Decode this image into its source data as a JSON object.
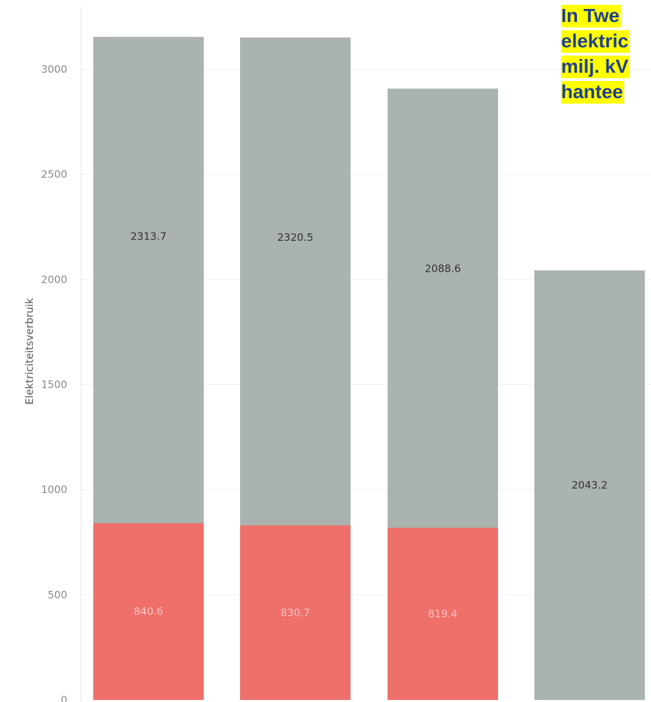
{
  "chart_data": {
    "type": "bar",
    "stacked": true,
    "ylabel": "Elektriciteitsverbruik",
    "xlabel": "",
    "ylim": [
      0,
      3200
    ],
    "yticks": [
      0,
      500,
      1000,
      1500,
      2000,
      2500,
      3000
    ],
    "grid": true,
    "categories": [
      "",
      "",
      "",
      ""
    ],
    "series": [
      {
        "values": [
          840.6,
          830.7,
          819.4,
          null
        ],
        "color": "#ef6f6a",
        "label_color": "#f7c5c2"
      },
      {
        "values": [
          2313.7,
          2320.5,
          2088.6,
          2043.2
        ],
        "color": "#aab3ad",
        "label_color": "#333333"
      }
    ]
  },
  "annotation": {
    "lines": [
      "In Twe",
      "elektric",
      "milj. kV",
      "hantee"
    ]
  }
}
